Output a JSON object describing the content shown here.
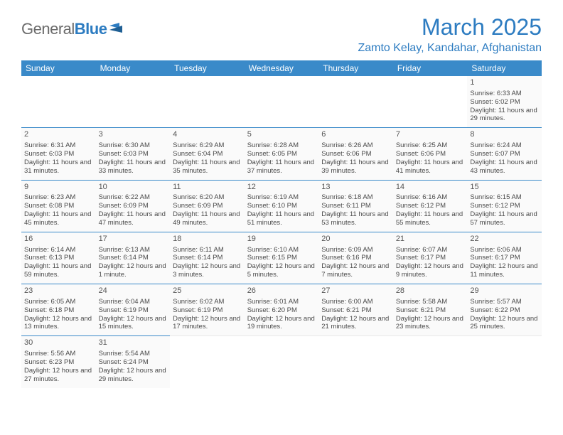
{
  "logo": {
    "text1": "General",
    "text2": "Blue"
  },
  "header": {
    "month_title": "March 2025",
    "location": "Zamto Kelay, Kandahar, Afghanistan"
  },
  "colors": {
    "header_bg": "#3a8ac9",
    "header_text": "#ffffff",
    "accent": "#2d7cc1",
    "cell_border": "#3a8ac9",
    "body_text": "#4a4a4a",
    "logo_gray": "#6b6b6b"
  },
  "weekdays": [
    "Sunday",
    "Monday",
    "Tuesday",
    "Wednesday",
    "Thursday",
    "Friday",
    "Saturday"
  ],
  "layout": {
    "type": "table",
    "columns": 7,
    "rows": 6,
    "cell_font_size_pt": 7,
    "header_font_size_pt": 9,
    "title_font_size_pt": 24
  },
  "weeks": [
    [
      null,
      null,
      null,
      null,
      null,
      null,
      {
        "d": "1",
        "sunrise": "6:33 AM",
        "sunset": "6:02 PM",
        "daylight": "11 hours and 29 minutes."
      }
    ],
    [
      {
        "d": "2",
        "sunrise": "6:31 AM",
        "sunset": "6:03 PM",
        "daylight": "11 hours and 31 minutes."
      },
      {
        "d": "3",
        "sunrise": "6:30 AM",
        "sunset": "6:03 PM",
        "daylight": "11 hours and 33 minutes."
      },
      {
        "d": "4",
        "sunrise": "6:29 AM",
        "sunset": "6:04 PM",
        "daylight": "11 hours and 35 minutes."
      },
      {
        "d": "5",
        "sunrise": "6:28 AM",
        "sunset": "6:05 PM",
        "daylight": "11 hours and 37 minutes."
      },
      {
        "d": "6",
        "sunrise": "6:26 AM",
        "sunset": "6:06 PM",
        "daylight": "11 hours and 39 minutes."
      },
      {
        "d": "7",
        "sunrise": "6:25 AM",
        "sunset": "6:06 PM",
        "daylight": "11 hours and 41 minutes."
      },
      {
        "d": "8",
        "sunrise": "6:24 AM",
        "sunset": "6:07 PM",
        "daylight": "11 hours and 43 minutes."
      }
    ],
    [
      {
        "d": "9",
        "sunrise": "6:23 AM",
        "sunset": "6:08 PM",
        "daylight": "11 hours and 45 minutes."
      },
      {
        "d": "10",
        "sunrise": "6:22 AM",
        "sunset": "6:09 PM",
        "daylight": "11 hours and 47 minutes."
      },
      {
        "d": "11",
        "sunrise": "6:20 AM",
        "sunset": "6:09 PM",
        "daylight": "11 hours and 49 minutes."
      },
      {
        "d": "12",
        "sunrise": "6:19 AM",
        "sunset": "6:10 PM",
        "daylight": "11 hours and 51 minutes."
      },
      {
        "d": "13",
        "sunrise": "6:18 AM",
        "sunset": "6:11 PM",
        "daylight": "11 hours and 53 minutes."
      },
      {
        "d": "14",
        "sunrise": "6:16 AM",
        "sunset": "6:12 PM",
        "daylight": "11 hours and 55 minutes."
      },
      {
        "d": "15",
        "sunrise": "6:15 AM",
        "sunset": "6:12 PM",
        "daylight": "11 hours and 57 minutes."
      }
    ],
    [
      {
        "d": "16",
        "sunrise": "6:14 AM",
        "sunset": "6:13 PM",
        "daylight": "11 hours and 59 minutes."
      },
      {
        "d": "17",
        "sunrise": "6:13 AM",
        "sunset": "6:14 PM",
        "daylight": "12 hours and 1 minute."
      },
      {
        "d": "18",
        "sunrise": "6:11 AM",
        "sunset": "6:14 PM",
        "daylight": "12 hours and 3 minutes."
      },
      {
        "d": "19",
        "sunrise": "6:10 AM",
        "sunset": "6:15 PM",
        "daylight": "12 hours and 5 minutes."
      },
      {
        "d": "20",
        "sunrise": "6:09 AM",
        "sunset": "6:16 PM",
        "daylight": "12 hours and 7 minutes."
      },
      {
        "d": "21",
        "sunrise": "6:07 AM",
        "sunset": "6:17 PM",
        "daylight": "12 hours and 9 minutes."
      },
      {
        "d": "22",
        "sunrise": "6:06 AM",
        "sunset": "6:17 PM",
        "daylight": "12 hours and 11 minutes."
      }
    ],
    [
      {
        "d": "23",
        "sunrise": "6:05 AM",
        "sunset": "6:18 PM",
        "daylight": "12 hours and 13 minutes."
      },
      {
        "d": "24",
        "sunrise": "6:04 AM",
        "sunset": "6:19 PM",
        "daylight": "12 hours and 15 minutes."
      },
      {
        "d": "25",
        "sunrise": "6:02 AM",
        "sunset": "6:19 PM",
        "daylight": "12 hours and 17 minutes."
      },
      {
        "d": "26",
        "sunrise": "6:01 AM",
        "sunset": "6:20 PM",
        "daylight": "12 hours and 19 minutes."
      },
      {
        "d": "27",
        "sunrise": "6:00 AM",
        "sunset": "6:21 PM",
        "daylight": "12 hours and 21 minutes."
      },
      {
        "d": "28",
        "sunrise": "5:58 AM",
        "sunset": "6:21 PM",
        "daylight": "12 hours and 23 minutes."
      },
      {
        "d": "29",
        "sunrise": "5:57 AM",
        "sunset": "6:22 PM",
        "daylight": "12 hours and 25 minutes."
      }
    ],
    [
      {
        "d": "30",
        "sunrise": "5:56 AM",
        "sunset": "6:23 PM",
        "daylight": "12 hours and 27 minutes."
      },
      {
        "d": "31",
        "sunrise": "5:54 AM",
        "sunset": "6:24 PM",
        "daylight": "12 hours and 29 minutes."
      },
      null,
      null,
      null,
      null,
      null
    ]
  ],
  "labels": {
    "sunrise_prefix": "Sunrise: ",
    "sunset_prefix": "Sunset: ",
    "daylight_prefix": "Daylight: "
  }
}
